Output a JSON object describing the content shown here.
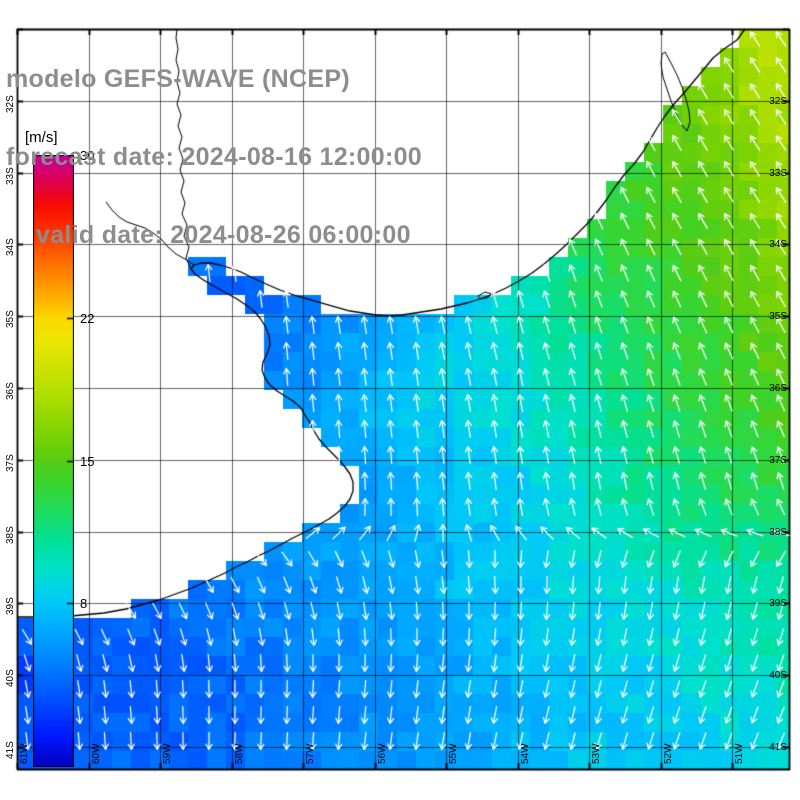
{
  "title": {
    "line1": "modelo GEFS-WAVE (NCEP)",
    "line2": "forecast date: 2024-08-16 12:00:00",
    "line3": "valid date: 2024-08-26 06:00:00"
  },
  "colorbar": {
    "unit_label": "[m/s]",
    "min": 0,
    "max": 30,
    "ticks": [
      {
        "value": 30,
        "label": "30"
      },
      {
        "value": 22,
        "label": "22"
      },
      {
        "value": 15,
        "label": "15"
      },
      {
        "value": 8,
        "label": "8"
      }
    ],
    "stops": [
      [
        0,
        "#0000c0"
      ],
      [
        1.5,
        "#0018ff"
      ],
      [
        3,
        "#0048ff"
      ],
      [
        5,
        "#0080ff"
      ],
      [
        7,
        "#00b0ff"
      ],
      [
        8,
        "#00c8f8"
      ],
      [
        9.5,
        "#00e0d0"
      ],
      [
        11,
        "#00e09a"
      ],
      [
        12.5,
        "#1edc5f"
      ],
      [
        14,
        "#3cd42a"
      ],
      [
        15,
        "#55cc14"
      ],
      [
        16.5,
        "#82d400"
      ],
      [
        18,
        "#aade00"
      ],
      [
        19.5,
        "#cce200"
      ],
      [
        21,
        "#eee600"
      ],
      [
        22,
        "#fcd800"
      ],
      [
        23,
        "#ffb000"
      ],
      [
        24.5,
        "#ff7800"
      ],
      [
        26,
        "#ff3c00"
      ],
      [
        27.5,
        "#f80c00"
      ],
      [
        28.7,
        "#e0004c"
      ],
      [
        30,
        "#c400a0"
      ]
    ]
  },
  "axes": {
    "lon_labels": [
      "61W",
      "60W",
      "59W",
      "58W",
      "57W",
      "56W",
      "55W",
      "54W",
      "53W",
      "52W",
      "51W"
    ],
    "lat_labels": [
      "32S",
      "33S",
      "34S",
      "35S",
      "36S",
      "37S",
      "38S",
      "39S",
      "40S",
      "41S"
    ]
  },
  "chart_data": {
    "type": "heatmap",
    "variable": "wind speed",
    "units": "m/s",
    "arrows": "wind direction (white quiver arrows)",
    "grid_cols": 9,
    "grid_rows": 9,
    "speeds": [
      [
        5,
        5,
        5,
        6,
        8,
        11,
        14,
        17,
        19
      ],
      [
        5,
        5,
        5,
        6,
        8,
        10,
        13,
        16,
        18
      ],
      [
        4,
        4,
        5,
        5,
        7,
        10,
        13,
        15,
        17
      ],
      [
        4,
        4,
        4,
        5,
        7,
        9,
        12,
        14,
        16
      ],
      [
        4,
        4,
        5,
        6,
        8,
        9,
        11,
        13,
        15
      ],
      [
        4,
        4,
        5,
        6,
        7,
        8,
        10,
        12,
        13
      ],
      [
        4,
        4,
        5,
        6,
        7,
        8,
        9,
        10,
        11
      ],
      [
        3,
        4,
        4,
        5,
        6,
        7,
        8,
        9,
        10
      ],
      [
        3,
        4,
        4,
        5,
        6,
        7,
        8,
        8,
        9
      ]
    ],
    "dirs_deg": [
      [
        350,
        350,
        350,
        350,
        345,
        340,
        335,
        330,
        326
      ],
      [
        350,
        350,
        350,
        350,
        345,
        340,
        335,
        330,
        326
      ],
      [
        355,
        355,
        352,
        350,
        345,
        340,
        335,
        330,
        327
      ],
      [
        0,
        0,
        355,
        352,
        350,
        345,
        340,
        335,
        330
      ],
      [
        5,
        5,
        0,
        355,
        352,
        350,
        345,
        340,
        335
      ],
      [
        25,
        18,
        10,
        2,
        356,
        352,
        350,
        346,
        342
      ],
      [
        120,
        135,
        150,
        160,
        170,
        178,
        185,
        190,
        195
      ],
      [
        168,
        172,
        178,
        182,
        186,
        190,
        194,
        198,
        200
      ],
      [
        175,
        178,
        182,
        185,
        188,
        192,
        196,
        200,
        204
      ]
    ]
  }
}
